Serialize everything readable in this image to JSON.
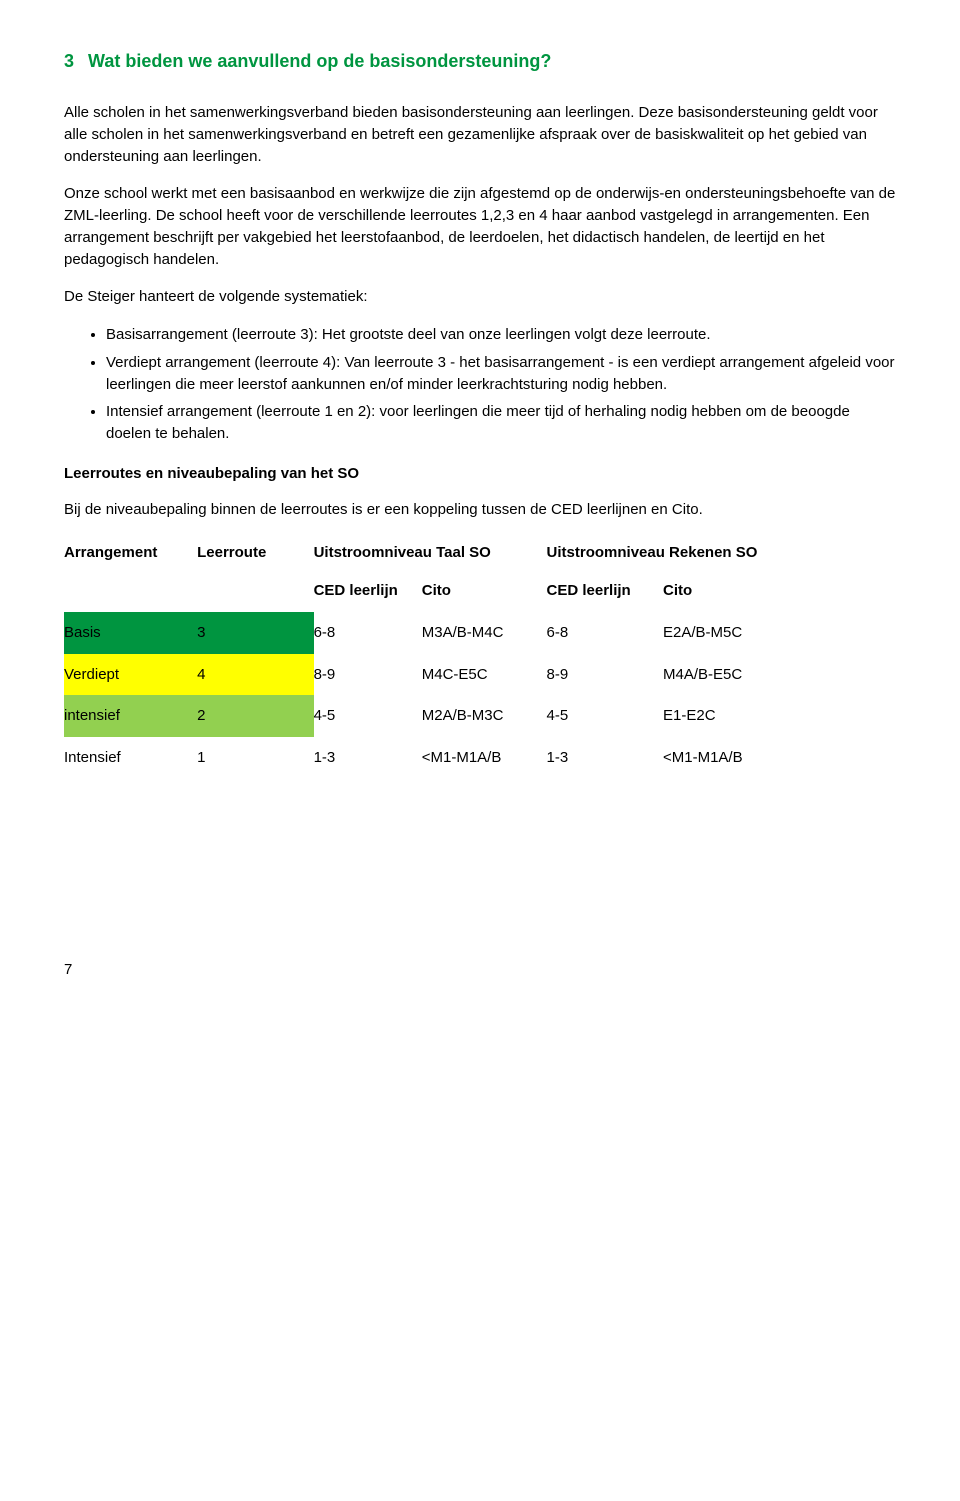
{
  "heading": {
    "num": "3",
    "title": "Wat bieden we aanvullend op de basisondersteuning?"
  },
  "para1": "Alle scholen in het samenwerkingsverband bieden basisondersteuning aan leerlingen. Deze basisondersteuning geldt voor alle scholen in het samenwerkingsverband en betreft een gezamenlijke afspraak over de basiskwaliteit op het gebied van ondersteuning aan leerlingen.",
  "para2": "Onze  school werkt met een basisaanbod en werkwijze die zijn afgestemd op de onderwijs-en ondersteuningsbehoefte van de ZML-leerling. De school heeft voor de verschillende leerroutes 1,2,3 en 4 haar aanbod vastgelegd in arrangementen. Een arrangement beschrijft per vakgebied het leerstofaanbod, de leerdoelen, het didactisch handelen, de leertijd en het pedagogisch handelen.",
  "para3": "De Steiger hanteert de volgende systematiek:",
  "bullets": [
    "Basisarrangement (leerroute 3): Het grootste deel van onze leerlingen volgt deze leerroute.",
    "Verdiept arrangement (leerroute 4): Van leerroute 3 - het basisarrangement - is een verdiept arrangement afgeleid voor leerlingen die meer leerstof aankunnen en/of minder leerkrachtsturing nodig hebben.",
    "Intensief arrangement (leerroute 1 en 2): voor leerlingen die meer tijd of herhaling nodig hebben om de beoogde doelen te behalen."
  ],
  "subhead1": "Leerroutes en niveaubepaling van het SO",
  "para4": "Bij de niveaubepaling binnen de leerroutes is er een koppeling tussen de CED leerlijnen en Cito.",
  "table": {
    "headers": {
      "col1": "Arrangement",
      "col2": "Leerroute",
      "col3": "Uitstroomniveau Taal SO",
      "col4": "Uitstroomniveau Rekenen SO"
    },
    "subheaders": {
      "ced": "CED leerlijn",
      "cito": "Cito"
    },
    "rows": [
      {
        "style": "row-green",
        "arr": "Basis",
        "route": "3",
        "taal_ced": "6-8",
        "taal_cito": "M3A/B-M4C",
        "rek_ced": "6-8",
        "rek_cito": "E2A/B-M5C"
      },
      {
        "style": "row-yellow",
        "arr": "Verdiept",
        "route": "4",
        "taal_ced": "8-9",
        "taal_cito": "M4C-E5C",
        "rek_ced": "8-9",
        "rek_cito": "M4A/B-E5C"
      },
      {
        "style": "row-lime",
        "arr": "intensief",
        "route": "2",
        "taal_ced": "4-5",
        "taal_cito": "M2A/B-M3C",
        "rek_ced": "4-5",
        "rek_cito": "E1-E2C"
      },
      {
        "style": "",
        "arr": "Intensief",
        "route": "1",
        "taal_ced": "1-3",
        "taal_cito": "<M1-M1A/B",
        "rek_ced": "1-3",
        "rek_cito": "<M1-M1A/B"
      }
    ]
  },
  "pagenum": "7",
  "colors": {
    "brand_green": "#009540",
    "yellow": "#ffff00",
    "lime": "#92d050"
  }
}
